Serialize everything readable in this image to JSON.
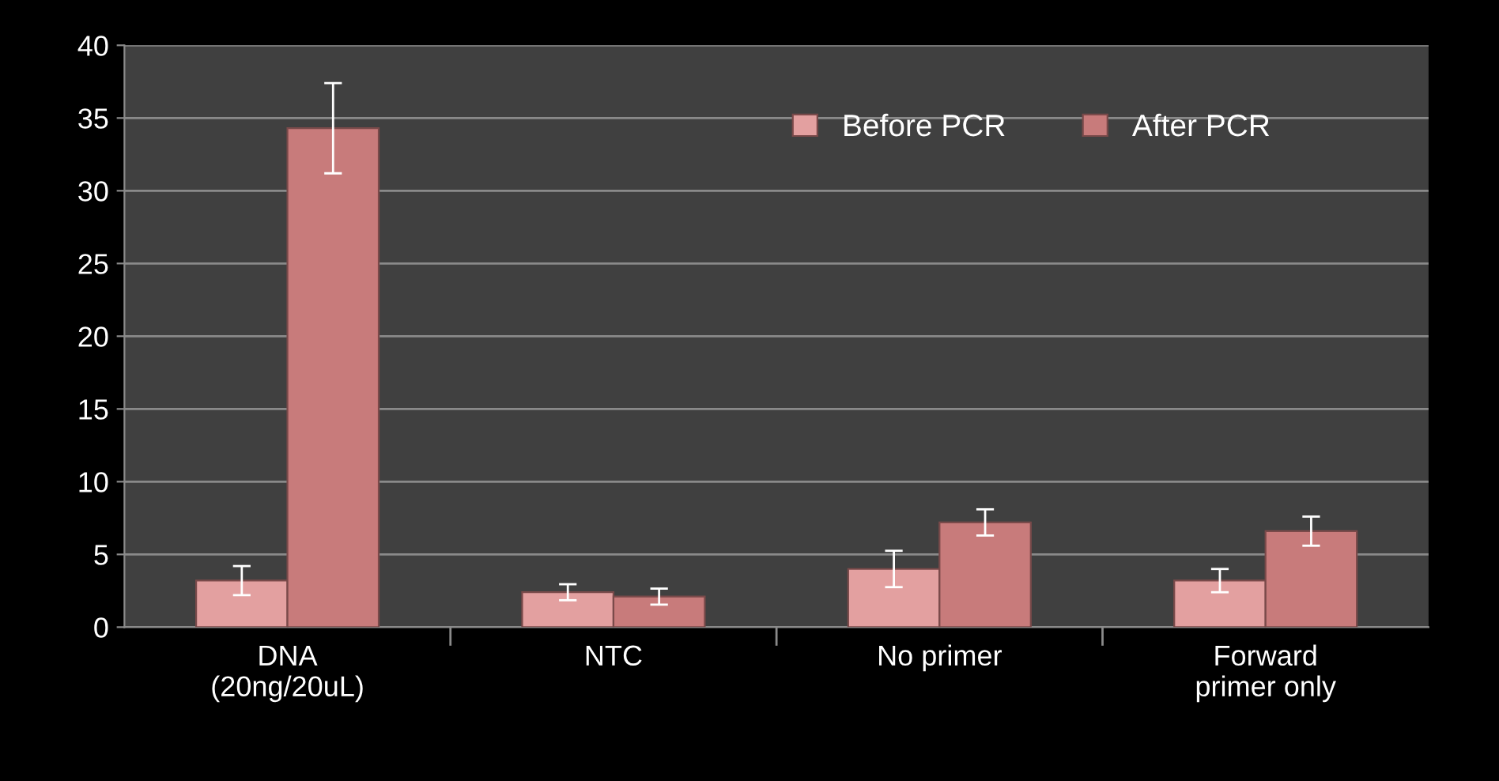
{
  "chart_data": {
    "type": "bar",
    "categories": [
      "DNA\n(20ng/20uL)",
      "NTC",
      "No primer",
      "Forward\nprimer only"
    ],
    "series": [
      {
        "name": "Before PCR",
        "color": "#e3a0a0",
        "values": [
          3.2,
          2.4,
          4.0,
          3.2
        ],
        "errors": [
          1.0,
          0.55,
          1.25,
          0.8
        ]
      },
      {
        "name": "After PCR",
        "color": "#c87b7b",
        "values": [
          34.3,
          2.1,
          7.2,
          6.6
        ],
        "errors": [
          3.1,
          0.55,
          0.9,
          1.0
        ]
      }
    ],
    "ylim": [
      0,
      40
    ],
    "yticks": [
      0,
      5,
      10,
      15,
      20,
      25,
      30,
      35,
      40
    ],
    "grid": "y",
    "legend": "top right"
  }
}
